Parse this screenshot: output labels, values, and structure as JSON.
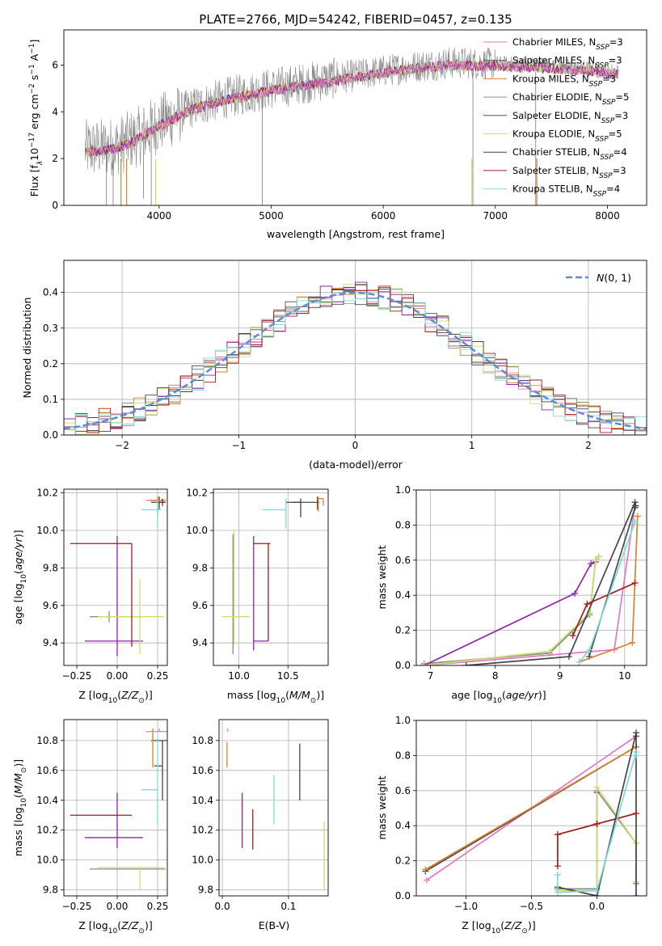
{
  "title": "PLATE=2766, MJD=54242, FIBERID=0457, z=0.135",
  "colors": {
    "Chabrier MILES": "#e377c2",
    "Salpeter MILES": "#4a4a4a",
    "Kroupa MILES": "#d7832e",
    "Chabrier ELODIE": "#888888",
    "Salpeter ELODIE": "#8e24aa",
    "Kroupa ELODIE": "#c8e06c",
    "Chabrier STELIB": "#444444",
    "Salpeter STELIB": "#a01c1c",
    "Kroupa STELIB": "#7fd8d8",
    "normal": "#5b8dd6"
  },
  "chart_data": [
    {
      "id": "spectrum",
      "type": "line",
      "xlabel": "wavelength [Angstrom, rest frame]",
      "ylabel": "Flux [f_λ 10^-17 erg cm^-2 s^-1 A^-1]",
      "xlim": [
        3150,
        8350
      ],
      "ylim": [
        0,
        7.5
      ],
      "xticks": [
        4000,
        5000,
        6000,
        7000,
        8000
      ],
      "yticks": [
        0,
        2,
        4,
        6
      ],
      "grid": false,
      "legend_position": "right",
      "continuum": {
        "x": [
          3350,
          3600,
          3800,
          4000,
          4300,
          4600,
          5000,
          5400,
          5800,
          6200,
          6600,
          7000,
          7400,
          7800,
          8100
        ],
        "y": [
          2.4,
          2.5,
          2.9,
          3.5,
          4.2,
          4.6,
          5.0,
          5.3,
          5.6,
          5.9,
          6.1,
          6.05,
          6.0,
          5.85,
          5.7
        ]
      },
      "series": [
        {
          "name": "Chabrier MILES, N_SSP=3"
        },
        {
          "name": "Salpeter MILES, N_SSP=3"
        },
        {
          "name": "Kroupa MILES, N_SSP=3"
        },
        {
          "name": "Chabrier ELODIE, N_SSP=5"
        },
        {
          "name": "Salpeter ELODIE, N_SSP=3"
        },
        {
          "name": "Kroupa ELODIE, N_SSP=5"
        },
        {
          "name": "Chabrier STELIB, N_SSP=4"
        },
        {
          "name": "Salpeter STELIB, N_SSP=3"
        },
        {
          "name": "Kroupa STELIB, N_SSP=4"
        }
      ]
    },
    {
      "id": "residuals",
      "type": "line",
      "xlabel": "(data-model)/error",
      "ylabel": "Normed distribution",
      "xlim": [
        -2.5,
        2.5
      ],
      "ylim": [
        0,
        0.49
      ],
      "xticks": [
        -2,
        -1,
        0,
        1,
        2
      ],
      "yticks": [
        0.0,
        0.1,
        0.2,
        0.3,
        0.4
      ],
      "grid": true,
      "legend": "N(0,1)",
      "legend_position": "top-right",
      "normal": {
        "mean": 0,
        "sigma": 1
      }
    },
    {
      "id": "age-vs-Z",
      "type": "scatter",
      "xlabel": "Z [log10(Z/Z⊙)]",
      "ylabel": "age [log10(age/yr)]",
      "xlim": [
        -0.33,
        0.31
      ],
      "ylim": [
        9.28,
        10.22
      ],
      "xticks": [
        -0.25,
        0.0,
        0.25
      ],
      "xticklabels": [
        "−0.25",
        "0.00",
        "0.25"
      ],
      "yticks": [
        9.4,
        9.6,
        9.8,
        10.0,
        10.2
      ],
      "grid": true,
      "points": [
        {
          "model": "Chabrier MILES",
          "x": 0.26,
          "y": 10.16,
          "xerr": [
            0.08,
            0.03
          ],
          "yerr": [
            0.02,
            0.02
          ]
        },
        {
          "model": "Salpeter MILES",
          "x": 0.26,
          "y": 10.15,
          "xerr": [
            0.05,
            0.04
          ],
          "yerr": [
            0.04,
            0.03
          ]
        },
        {
          "model": "Kroupa MILES",
          "x": 0.25,
          "y": 10.16,
          "xerr": [
            0.05,
            0.05
          ],
          "yerr": [
            0.07,
            0.02
          ]
        },
        {
          "model": "Chabrier ELODIE",
          "x": -0.05,
          "y": 9.54,
          "xerr": [
            0.12,
            0.2
          ],
          "yerr": [
            0.03,
            0.03
          ]
        },
        {
          "model": "Salpeter ELODIE",
          "x": 0.0,
          "y": 9.41,
          "xerr": [
            0.2,
            0.16
          ],
          "yerr": [
            0.08,
            0.56
          ]
        },
        {
          "model": "Kroupa ELODIE",
          "x": 0.14,
          "y": 9.54,
          "xerr": [
            0.26,
            0.15
          ],
          "yerr": [
            0.2,
            0.2
          ]
        },
        {
          "model": "Chabrier STELIB",
          "x": 0.28,
          "y": 10.15,
          "xerr": [
            0.02,
            0.02
          ],
          "yerr": [
            0.02,
            0.02
          ]
        },
        {
          "model": "Salpeter STELIB",
          "x": 0.09,
          "y": 9.93,
          "xerr": [
            0.38,
            0.0
          ],
          "yerr": [
            0.55,
            0.0
          ]
        },
        {
          "model": "Kroupa STELIB",
          "x": 0.25,
          "y": 10.11,
          "xerr": [
            0.1,
            0.02
          ],
          "yerr": [
            0.1,
            0.05
          ]
        }
      ]
    },
    {
      "id": "age-vs-mass",
      "type": "scatter",
      "xlabel": "mass [log10(M/M⊙)]",
      "ylabel": "",
      "xlim": [
        9.74,
        10.91
      ],
      "ylim": [
        9.28,
        10.22
      ],
      "xticks": [
        10.0,
        10.5
      ],
      "xticklabels": [
        "10.0",
        "10.5"
      ],
      "yticks": [
        9.4,
        9.6,
        9.8,
        10.0,
        10.2
      ],
      "grid": true,
      "points": [
        {
          "model": "Chabrier MILES",
          "x": 10.86,
          "y": 10.15,
          "xerr": [
            0.0,
            0.01
          ],
          "yerr": [
            0.02,
            0.02
          ]
        },
        {
          "model": "Salpeter MILES",
          "x": 10.8,
          "y": 10.15,
          "xerr": [
            0.25,
            0.02
          ],
          "yerr": [
            0.04,
            0.03
          ]
        },
        {
          "model": "Kroupa MILES",
          "x": 10.81,
          "y": 10.17,
          "xerr": [
            0.01,
            0.05
          ],
          "yerr": [
            0.07,
            0.01
          ]
        },
        {
          "model": "Chabrier ELODIE",
          "x": 9.94,
          "y": 9.54,
          "xerr": [
            0.0,
            0.0
          ],
          "yerr": [
            0.2,
            0.44
          ]
        },
        {
          "model": "Salpeter ELODIE",
          "x": 10.15,
          "y": 9.41,
          "xerr": [
            0.0,
            0.15
          ],
          "yerr": [
            0.05,
            0.56
          ]
        },
        {
          "model": "Kroupa ELODIE",
          "x": 9.95,
          "y": 9.54,
          "xerr": [
            0.12,
            0.16
          ],
          "yerr": [
            0.15,
            0.46
          ]
        },
        {
          "model": "Chabrier STELIB",
          "x": 10.63,
          "y": 10.15,
          "xerr": [
            0.15,
            0.0
          ],
          "yerr": [
            0.08,
            0.02
          ]
        },
        {
          "model": "Salpeter STELIB",
          "x": 10.3,
          "y": 9.93,
          "xerr": [
            0.15,
            0.02
          ],
          "yerr": [
            0.52,
            0.0
          ]
        },
        {
          "model": "Kroupa STELIB",
          "x": 10.48,
          "y": 10.11,
          "xerr": [
            0.24,
            0.0
          ],
          "yerr": [
            0.1,
            0.06
          ]
        }
      ]
    },
    {
      "id": "massweight-vs-age",
      "type": "line",
      "xlabel": "age [log10(age/yr)]",
      "ylabel": "mass weight",
      "xlim": [
        6.78,
        10.34
      ],
      "ylim": [
        0.0,
        1.0
      ],
      "xticks": [
        7,
        8,
        9,
        10
      ],
      "yticks": [
        0.0,
        0.2,
        0.4,
        0.6,
        0.8,
        1.0
      ],
      "grid": true,
      "series": [
        {
          "model": "Chabrier MILES",
          "x": [
            6.9,
            9.84,
            10.16
          ],
          "y": [
            0.0,
            0.09,
            0.91
          ]
        },
        {
          "model": "Salpeter MILES",
          "x": [
            9.45,
            10.16
          ],
          "y": [
            0.05,
            0.9
          ]
        },
        {
          "model": "Kroupa MILES",
          "x": [
            9.3,
            10.12,
            10.2
          ],
          "y": [
            0.02,
            0.13,
            0.85
          ]
        },
        {
          "model": "Chabrier ELODIE",
          "x": [
            6.9,
            8.84,
            9.46,
            9.55,
            9.6
          ],
          "y": [
            0.01,
            0.07,
            0.29,
            0.6,
            0.62
          ]
        },
        {
          "model": "Salpeter ELODIE",
          "x": [
            6.9,
            9.23,
            9.48,
            9.55
          ],
          "y": [
            0.0,
            0.41,
            0.58,
            0.59
          ]
        },
        {
          "model": "Kroupa ELODIE",
          "x": [
            6.9,
            8.84,
            9.46,
            9.55,
            9.6
          ],
          "y": [
            0.0,
            0.08,
            0.3,
            0.6,
            0.62
          ]
        },
        {
          "model": "Chabrier STELIB",
          "x": [
            7.55,
            9.14,
            10.16,
            10.17
          ],
          "y": [
            0.0,
            0.05,
            0.93,
            0.91
          ]
        },
        {
          "model": "Salpeter STELIB",
          "x": [
            9.2,
            9.42,
            10.16
          ],
          "y": [
            0.17,
            0.35,
            0.47
          ]
        },
        {
          "model": "Kroupa STELIB",
          "x": [
            9.3,
            9.46,
            10.16
          ],
          "y": [
            0.02,
            0.09,
            0.82
          ]
        }
      ]
    },
    {
      "id": "mass-vs-Z",
      "type": "scatter",
      "xlabel": "Z [log10(Z/Z⊙)]",
      "ylabel": "mass [log10(M/M⊙)]",
      "xlim": [
        -0.33,
        0.31
      ],
      "ylim": [
        9.76,
        10.94
      ],
      "xticks": [
        -0.25,
        0.0,
        0.25
      ],
      "xticklabels": [
        "−0.25",
        "0.00",
        "0.25"
      ],
      "yticks": [
        9.8,
        10.0,
        10.2,
        10.4,
        10.6,
        10.8
      ],
      "grid": true,
      "points": [
        {
          "model": "Chabrier MILES",
          "x": 0.26,
          "y": 10.86,
          "xerr": [
            0.08,
            0.05
          ],
          "yerr": [
            0.0,
            0.02
          ]
        },
        {
          "model": "Salpeter MILES",
          "x": 0.26,
          "y": 10.8,
          "xerr": [
            0.05,
            0.05
          ],
          "yerr": [
            0.0,
            0.0
          ]
        },
        {
          "model": "Kroupa MILES",
          "x": 0.22,
          "y": 10.79,
          "xerr": [
            0.0,
            0.0
          ],
          "yerr": [
            0.17,
            0.09
          ]
        },
        {
          "model": "Chabrier ELODIE",
          "x": -0.05,
          "y": 9.94,
          "xerr": [
            0.12,
            0.35
          ],
          "yerr": [
            0.0,
            0.0
          ]
        },
        {
          "model": "Salpeter ELODIE",
          "x": 0.0,
          "y": 10.15,
          "xerr": [
            0.2,
            0.16
          ],
          "yerr": [
            0.07,
            0.3
          ]
        },
        {
          "model": "Kroupa ELODIE",
          "x": 0.14,
          "y": 9.95,
          "xerr": [
            0.26,
            0.15
          ],
          "yerr": [
            0.15,
            0.0
          ]
        },
        {
          "model": "Chabrier STELIB",
          "x": 0.28,
          "y": 10.63,
          "xerr": [
            0.05,
            0.0
          ],
          "yerr": [
            0.23,
            0.17
          ]
        },
        {
          "model": "Salpeter STELIB",
          "x": 0.09,
          "y": 10.3,
          "xerr": [
            0.38,
            0.0
          ],
          "yerr": [
            0.0,
            0.0
          ]
        },
        {
          "model": "Kroupa STELIB",
          "x": 0.25,
          "y": 10.47,
          "xerr": [
            0.1,
            0.0
          ],
          "yerr": [
            0.23,
            0.35
          ]
        }
      ]
    },
    {
      "id": "mass-vs-EBV",
      "type": "scatter",
      "xlabel": "E(B-V)",
      "ylabel": "",
      "xlim": [
        -0.005,
        0.16
      ],
      "ylim": [
        9.76,
        10.94
      ],
      "xticks": [
        0.0,
        0.1
      ],
      "xticklabels": [
        "0.0",
        "0.1"
      ],
      "yticks": [
        9.8,
        10.0,
        10.2,
        10.4,
        10.6,
        10.8
      ],
      "grid": true,
      "points": [
        {
          "model": "Chabrier MILES",
          "x": 0.008,
          "y": 10.86,
          "yerr": [
            0.0,
            0.02
          ]
        },
        {
          "model": "Kroupa MILES",
          "x": 0.007,
          "y": 10.79,
          "yerr": [
            0.17,
            0.0
          ]
        },
        {
          "model": "Salpeter ELODIE",
          "x": 0.03,
          "y": 10.15,
          "yerr": [
            0.07,
            0.3
          ]
        },
        {
          "model": "Salpeter STELIB",
          "x": 0.046,
          "y": 10.3,
          "yerr": [
            0.23,
            0.04
          ]
        },
        {
          "model": "Kroupa STELIB",
          "x": 0.078,
          "y": 10.47,
          "yerr": [
            0.23,
            0.1
          ]
        },
        {
          "model": "Chabrier STELIB",
          "x": 0.117,
          "y": 10.63,
          "yerr": [
            0.23,
            0.15
          ]
        },
        {
          "model": "Kroupa ELODIE",
          "x": 0.154,
          "y": 9.95,
          "yerr": [
            0.15,
            0.31
          ]
        }
      ]
    },
    {
      "id": "massweight-vs-Z",
      "type": "line",
      "xlabel": "Z [log10(Z/Z⊙)]",
      "ylabel": "mass weight",
      "xlim": [
        -1.38,
        0.38
      ],
      "ylim": [
        0.0,
        1.0
      ],
      "xticks": [
        -1.0,
        -0.5,
        0.0
      ],
      "xticklabels": [
        "−1.0",
        "−0.5",
        "0.0"
      ],
      "yticks": [
        0.0,
        0.2,
        0.4,
        0.6,
        0.8,
        1.0
      ],
      "grid": true,
      "series": [
        {
          "model": "Chabrier MILES",
          "x": [
            -1.3,
            0.3
          ],
          "y": [
            0.09,
            0.91
          ]
        },
        {
          "model": "Salpeter MILES",
          "x": [
            -1.31,
            0.3
          ],
          "y": [
            0.14,
            0.85
          ]
        },
        {
          "model": "Kroupa MILES",
          "x": [
            -1.31,
            0.3
          ],
          "y": [
            0.15,
            0.85
          ]
        },
        {
          "model": "Chabrier ELODIE",
          "x": [
            -0.3,
            0.0,
            0.0,
            0.3,
            0.3
          ],
          "y": [
            0.04,
            0.04,
            0.6,
            0.3,
            0.07
          ]
        },
        {
          "model": "Salpeter ELODIE",
          "x": [
            0.0,
            0.0
          ],
          "y": [
            0.41,
            0.59
          ]
        },
        {
          "model": "Kroupa ELODIE",
          "x": [
            -0.3,
            0.0,
            0.0,
            0.3,
            0.3
          ],
          "y": [
            0.03,
            0.03,
            0.62,
            0.3,
            0.08
          ]
        },
        {
          "model": "Chabrier STELIB",
          "x": [
            -0.3,
            0.0,
            0.3,
            0.3,
            0.3
          ],
          "y": [
            0.05,
            0.0,
            0.93,
            0.91,
            0.0
          ]
        },
        {
          "model": "Salpeter STELIB",
          "x": [
            -0.3,
            -0.3,
            0.0,
            0.3
          ],
          "y": [
            0.17,
            0.35,
            0.41,
            0.47
          ]
        },
        {
          "model": "Kroupa STELIB",
          "x": [
            -0.3,
            -0.3,
            0.0,
            0.3,
            0.3
          ],
          "y": [
            0.12,
            0.02,
            0.03,
            0.82,
            0.8
          ]
        }
      ]
    }
  ]
}
